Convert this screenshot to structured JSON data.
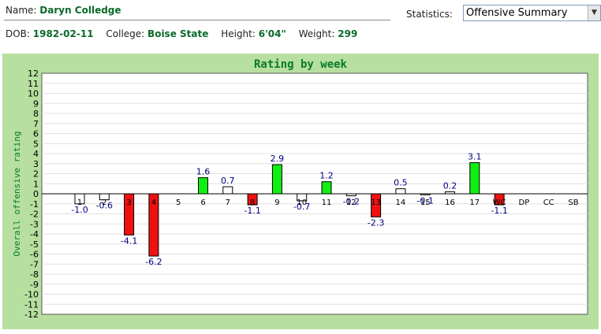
{
  "header": {
    "name_label": "Name:",
    "name_value": "Daryn Colledge",
    "statistics_label": "Statistics:",
    "statistics_selected": "Offensive Summary",
    "dob_label": "DOB:",
    "dob_value": "1982-02-11",
    "college_label": "College:",
    "college_value": "Boise State",
    "height_label": "Height:",
    "height_value": "6'04\"",
    "weight_label": "Weight:",
    "weight_value": "299"
  },
  "colors": {
    "positive": "#11ee11",
    "negative": "#ee1111",
    "neutral": "#ffffff",
    "title": "#0a7a2a",
    "value_label": "#000080"
  },
  "chart_data": {
    "type": "bar",
    "title": "Rating by week",
    "xlabel": "",
    "ylabel": "Overall offensive rating",
    "ylim": [
      -12,
      12
    ],
    "yticks": [
      12,
      11,
      10,
      9,
      8,
      7,
      6,
      5,
      4,
      3,
      2,
      1,
      0,
      -1,
      -2,
      -3,
      -4,
      -5,
      -6,
      -7,
      -8,
      -9,
      -10,
      -11,
      -12
    ],
    "grid": true,
    "categories": [
      "1",
      "2",
      "3",
      "4",
      "5",
      "6",
      "7",
      "8",
      "9",
      "10",
      "11",
      "12",
      "13",
      "14",
      "15",
      "16",
      "17",
      "WC",
      "DP",
      "CC",
      "SB"
    ],
    "values": [
      -1.0,
      -0.6,
      -4.1,
      -6.2,
      null,
      1.6,
      0.7,
      -1.1,
      2.9,
      -0.7,
      1.2,
      -0.2,
      -2.3,
      0.5,
      -0.1,
      0.2,
      3.1,
      -1.1,
      null,
      null,
      null
    ],
    "value_labels": [
      "-1.0",
      "-0.6",
      "-4.1",
      "-6.2",
      "",
      "1.6",
      "0.7",
      "-1.1",
      "2.9",
      "-0.7",
      "1.2",
      "-0.2",
      "-2.3",
      "0.5",
      "-0.1",
      "0.2",
      "3.1",
      "-1.1",
      "",
      "",
      ""
    ],
    "bar_status": [
      "neutral",
      "neutral",
      "negative",
      "negative",
      "none",
      "positive",
      "neutral",
      "negative",
      "positive",
      "neutral",
      "positive",
      "neutral",
      "negative",
      "neutral",
      "neutral",
      "neutral",
      "positive",
      "negative",
      "none",
      "none",
      "none"
    ]
  }
}
